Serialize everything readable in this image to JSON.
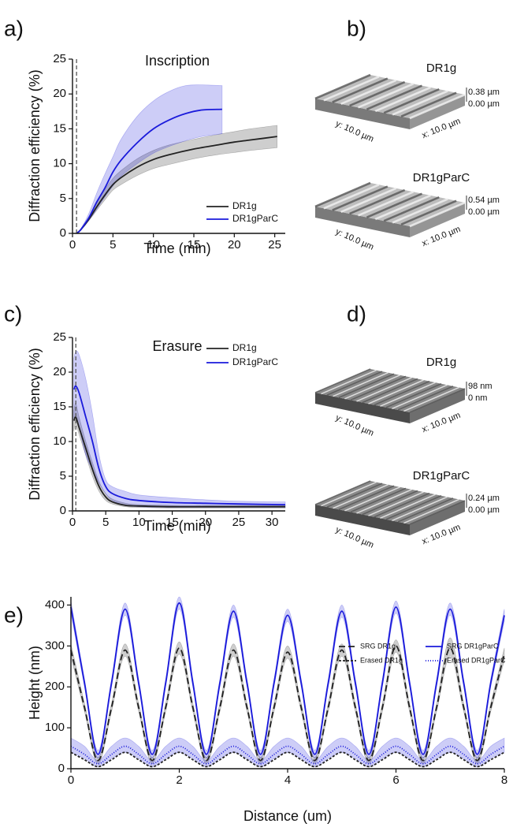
{
  "chart_data": [
    {
      "panel_label": "a)",
      "type": "line",
      "title": "Inscription",
      "x_label": "Time (min)",
      "y_label": "Diffraction efficiency (%)",
      "xlim": [
        0,
        26.3
      ],
      "ylim": [
        0,
        25
      ],
      "xticks": [
        0,
        5,
        10,
        15,
        20,
        25
      ],
      "yticks": [
        0,
        5,
        10,
        15,
        20,
        25
      ],
      "vline": 0.5,
      "legend": "lower right",
      "series": [
        {
          "name": "DR1g",
          "color": "#222222",
          "dash": "solid",
          "x": [
            0.5,
            1,
            2,
            3,
            4,
            5,
            6,
            8,
            10,
            12,
            15,
            18,
            20,
            22,
            25.3
          ],
          "values": [
            0,
            0.5,
            2,
            3.8,
            5.5,
            7,
            8,
            9.5,
            10.6,
            11.3,
            12.1,
            12.7,
            13.1,
            13.4,
            13.9
          ],
          "lower": [
            0,
            0.4,
            1.8,
            3.3,
            4.8,
            6.2,
            7,
            8.3,
            9.3,
            9.9,
            10.7,
            11.3,
            11.6,
            11.9,
            12.3
          ],
          "upper": [
            0,
            0.6,
            2.3,
            4.3,
            6.3,
            7.9,
            9,
            10.7,
            11.9,
            12.7,
            13.5,
            14.2,
            14.6,
            15,
            15.5
          ]
        },
        {
          "name": "DR1gParC",
          "color": "#1a1adb",
          "dash": "solid",
          "x": [
            0.5,
            1,
            2,
            3,
            4,
            5,
            6,
            8,
            10,
            12,
            14,
            16,
            18.5
          ],
          "values": [
            0,
            0.5,
            2.2,
            4.5,
            6.5,
            8.8,
            10.5,
            13,
            15,
            16.3,
            17.2,
            17.7,
            17.8
          ],
          "lower": [
            0,
            0.4,
            1.8,
            3.5,
            5.2,
            6.8,
            8.2,
            10,
            11.5,
            12.5,
            13.3,
            13.9,
            14.3
          ],
          "upper": [
            0,
            0.6,
            2.8,
            5.8,
            8.5,
            11,
            13.5,
            16.8,
            19,
            20.4,
            21.2,
            21.3,
            21.2
          ]
        }
      ]
    },
    {
      "panel_label": "c)",
      "type": "line",
      "title": "Erasure",
      "x_label": "Time (min)",
      "y_label": "Diffraction efficiency (%)",
      "xlim": [
        0,
        32
      ],
      "ylim": [
        0,
        25
      ],
      "xticks": [
        0,
        5,
        10,
        15,
        20,
        25,
        30
      ],
      "yticks": [
        0,
        5,
        10,
        15,
        20,
        25
      ],
      "vline": 0.5,
      "legend": "upper right",
      "series": [
        {
          "name": "DR1g",
          "color": "#222222",
          "dash": "solid",
          "x": [
            0.2,
            0.5,
            1,
            2,
            3,
            4,
            5,
            6,
            8,
            10,
            15,
            20,
            25,
            32
          ],
          "values": [
            13,
            13.5,
            12,
            9,
            6,
            3.5,
            2,
            1.3,
            0.8,
            0.7,
            0.6,
            0.6,
            0.6,
            0.6
          ],
          "lower": [
            11.5,
            12.5,
            11,
            8,
            5,
            2.8,
            1.5,
            1,
            0.6,
            0.5,
            0.4,
            0.4,
            0.4,
            0.4
          ],
          "upper": [
            14.5,
            15.5,
            13.5,
            10,
            7,
            4.2,
            2.5,
            1.7,
            1.1,
            0.9,
            0.8,
            0.8,
            0.8,
            0.8
          ]
        },
        {
          "name": "DR1gParC",
          "color": "#1a1adb",
          "dash": "solid",
          "x": [
            0.2,
            0.5,
            1,
            2,
            3,
            4,
            5,
            6,
            8,
            10,
            15,
            20,
            25,
            32
          ],
          "values": [
            17.5,
            18,
            17,
            13.5,
            10,
            6,
            3.5,
            2.5,
            1.8,
            1.5,
            1.2,
            1.1,
            1,
            0.9
          ],
          "lower": [
            13,
            13.5,
            12,
            8,
            6,
            4,
            2.5,
            1.5,
            0.8,
            0.6,
            0.5,
            0.5,
            0.5,
            0.5
          ],
          "upper": [
            22,
            23,
            22.5,
            19,
            14,
            8,
            4.5,
            3.5,
            2.8,
            2.3,
            1.9,
            1.6,
            1.4,
            1.3
          ]
        }
      ]
    },
    {
      "panel_label": "e)",
      "type": "line",
      "x_label": "Distance (um)",
      "y_label": "Height (nm)",
      "xlim": [
        0,
        8
      ],
      "ylim": [
        0,
        420
      ],
      "xticks": [
        0,
        2,
        4,
        6,
        8
      ],
      "yticks": [
        0,
        100,
        200,
        300,
        400
      ],
      "legend": "top right",
      "series": [
        {
          "name": "SRG DR1g",
          "color": "#222222",
          "dash": "dashed",
          "x": [
            0,
            0.25,
            0.5,
            0.75,
            1,
            1.25,
            1.5,
            1.75,
            2,
            2.25,
            2.5,
            2.75,
            3,
            3.25,
            3.5,
            3.75,
            4,
            4.25,
            4.5,
            4.75,
            5,
            5.25,
            5.5,
            5.75,
            6,
            6.25,
            6.5,
            6.75,
            7,
            7.25,
            7.5,
            7.75,
            8
          ],
          "values": [
            290,
            150,
            20,
            150,
            290,
            150,
            20,
            150,
            295,
            150,
            20,
            150,
            290,
            150,
            20,
            150,
            285,
            150,
            20,
            150,
            290,
            150,
            20,
            150,
            300,
            150,
            20,
            150,
            295,
            150,
            20,
            150,
            280
          ],
          "lower": [
            275,
            140,
            12,
            140,
            275,
            140,
            12,
            140,
            280,
            140,
            12,
            140,
            275,
            140,
            12,
            140,
            270,
            140,
            12,
            140,
            275,
            140,
            12,
            140,
            285,
            140,
            12,
            140,
            275,
            140,
            12,
            140,
            265
          ],
          "upper": [
            305,
            160,
            28,
            160,
            305,
            160,
            28,
            160,
            310,
            160,
            28,
            160,
            305,
            160,
            28,
            160,
            300,
            160,
            28,
            160,
            305,
            160,
            28,
            160,
            315,
            160,
            28,
            160,
            320,
            160,
            28,
            160,
            295
          ]
        },
        {
          "name": "SRG DR1gParC",
          "color": "#1a1adb",
          "dash": "solid",
          "x": [
            0,
            0.25,
            0.5,
            0.75,
            1,
            1.25,
            1.5,
            1.75,
            2,
            2.25,
            2.5,
            2.75,
            3,
            3.25,
            3.5,
            3.75,
            4,
            4.25,
            4.5,
            4.75,
            5,
            5.25,
            5.5,
            5.75,
            6,
            6.25,
            6.5,
            6.75,
            7,
            7.25,
            7.5,
            7.75,
            8
          ],
          "values": [
            395,
            210,
            35,
            210,
            390,
            210,
            35,
            210,
            405,
            210,
            35,
            210,
            385,
            210,
            35,
            210,
            375,
            210,
            35,
            210,
            385,
            210,
            35,
            210,
            395,
            210,
            35,
            210,
            390,
            210,
            35,
            210,
            375
          ],
          "lower": [
            380,
            200,
            25,
            200,
            375,
            200,
            25,
            200,
            390,
            200,
            25,
            200,
            370,
            200,
            25,
            200,
            360,
            200,
            25,
            200,
            370,
            200,
            25,
            200,
            380,
            200,
            25,
            200,
            375,
            200,
            25,
            200,
            360
          ],
          "upper": [
            410,
            220,
            45,
            220,
            405,
            220,
            45,
            220,
            420,
            220,
            45,
            220,
            400,
            220,
            45,
            220,
            390,
            220,
            45,
            220,
            400,
            220,
            45,
            220,
            410,
            220,
            45,
            220,
            405,
            220,
            45,
            220,
            390
          ]
        },
        {
          "name": "Erased DR1g",
          "color": "#222222",
          "dash": "short-dashed",
          "x": [
            0,
            0.25,
            0.5,
            0.75,
            1,
            1.25,
            1.5,
            1.75,
            2,
            2.25,
            2.5,
            2.75,
            3,
            3.25,
            3.5,
            3.75,
            4,
            4.25,
            4.5,
            4.75,
            5,
            5.25,
            5.5,
            5.75,
            6,
            6.25,
            6.5,
            6.75,
            7,
            7.25,
            7.5,
            7.75,
            8
          ],
          "values": [
            40,
            22,
            5,
            22,
            40,
            22,
            5,
            22,
            40,
            22,
            5,
            22,
            40,
            22,
            5,
            22,
            40,
            22,
            5,
            22,
            40,
            22,
            5,
            22,
            40,
            22,
            5,
            22,
            40,
            22,
            5,
            22,
            40
          ]
        },
        {
          "name": "Erased DR1gParC",
          "color": "#1a1adb",
          "dash": "dotted",
          "x": [
            0,
            0.25,
            0.5,
            0.75,
            1,
            1.25,
            1.5,
            1.75,
            2,
            2.25,
            2.5,
            2.75,
            3,
            3.25,
            3.5,
            3.75,
            4,
            4.25,
            4.5,
            4.75,
            5,
            5.25,
            5.5,
            5.75,
            6,
            6.25,
            6.5,
            6.75,
            7,
            7.25,
            7.5,
            7.75,
            8
          ],
          "values": [
            55,
            35,
            12,
            35,
            55,
            35,
            12,
            35,
            55,
            35,
            12,
            35,
            55,
            35,
            12,
            35,
            55,
            35,
            12,
            35,
            55,
            35,
            12,
            35,
            55,
            35,
            12,
            35,
            55,
            35,
            12,
            35,
            55
          ],
          "lower": [
            40,
            25,
            5,
            25,
            40,
            25,
            5,
            25,
            40,
            25,
            5,
            25,
            40,
            25,
            5,
            25,
            40,
            25,
            5,
            25,
            40,
            25,
            5,
            25,
            40,
            25,
            5,
            25,
            40,
            25,
            5,
            25,
            40
          ],
          "upper": [
            75,
            55,
            20,
            55,
            75,
            55,
            20,
            55,
            75,
            55,
            20,
            55,
            75,
            55,
            20,
            55,
            75,
            55,
            20,
            55,
            75,
            55,
            20,
            55,
            75,
            55,
            20,
            55,
            75,
            55,
            20,
            55,
            75
          ]
        }
      ]
    }
  ],
  "afm": [
    {
      "panel_label": "b)",
      "images": [
        {
          "title": "DR1g",
          "z_max": "0.38 µm",
          "z_min": "0.00 µm",
          "y_axis": "y: 10.0 µm",
          "x_axis": "x: 10.0 µm"
        },
        {
          "title": "DR1gParC",
          "z_max": "0.54 µm",
          "z_min": "0.00 µm",
          "y_axis": "y: 10.0 µm",
          "x_axis": "x: 10.0 µm"
        }
      ]
    },
    {
      "panel_label": "d)",
      "images": [
        {
          "title": "DR1g",
          "z_max": "98 nm",
          "z_min": "0 nm",
          "y_axis": "y: 10.0 µm",
          "x_axis": "x: 10.0 µm"
        },
        {
          "title": "DR1gParC",
          "z_max": "0.24 µm",
          "z_min": "0.00 µm",
          "y_axis": "y: 10.0 µm",
          "x_axis": "x: 10.0 µm"
        }
      ]
    }
  ]
}
